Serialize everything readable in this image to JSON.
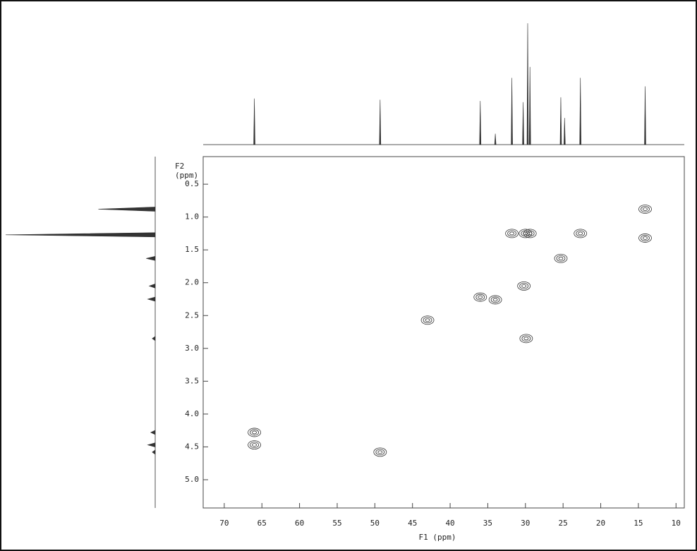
{
  "chart_data": {
    "type": "hsqc",
    "xlabel": "F1 (ppm)",
    "ylabel": [
      "F2",
      "(ppm)"
    ],
    "xlim": [
      72.8,
      8.9
    ],
    "ylim": [
      0.08,
      5.43
    ],
    "xticks": [
      70,
      65,
      60,
      55,
      50,
      45,
      40,
      35,
      30,
      25,
      20,
      15,
      10
    ],
    "yticks": [
      0.5,
      {
        "value": 1,
        "label": "1.0"
      },
      1.5,
      {
        "value": 2,
        "label": "2.0"
      },
      2.5,
      {
        "value": 3,
        "label": "3.0"
      },
      3.5,
      {
        "value": 4,
        "label": "4.0"
      },
      4.5,
      {
        "value": 5,
        "label": "5.0"
      }
    ],
    "color": "#333333",
    "peaks": {
      "x": [
        66.0,
        66.0,
        49.3,
        43.0,
        36.0,
        34.0,
        31.8,
        30.0,
        29.4,
        30.2,
        29.9,
        25.3,
        22.7,
        14.1,
        14.1
      ],
      "y": [
        4.28,
        4.47,
        4.58,
        2.57,
        2.22,
        2.26,
        1.25,
        1.25,
        1.25,
        2.05,
        2.85,
        1.63,
        1.25,
        0.88,
        1.32
      ]
    },
    "top_projection": {
      "x": [
        66.0,
        49.3,
        36.0,
        34.0,
        31.8,
        30.3,
        29.7,
        29.4,
        25.3,
        24.8,
        22.7,
        14.1
      ],
      "intensity": [
        38,
        37,
        36,
        9,
        55,
        35,
        100,
        64,
        39,
        22,
        55,
        48
      ]
    },
    "left_projection": {
      "y": [
        0.88,
        1.27,
        1.63,
        2.05,
        2.25,
        2.85,
        4.28,
        4.47,
        4.58
      ],
      "intensity": [
        38,
        100,
        6,
        4,
        5,
        2,
        3,
        5,
        2
      ]
    }
  }
}
